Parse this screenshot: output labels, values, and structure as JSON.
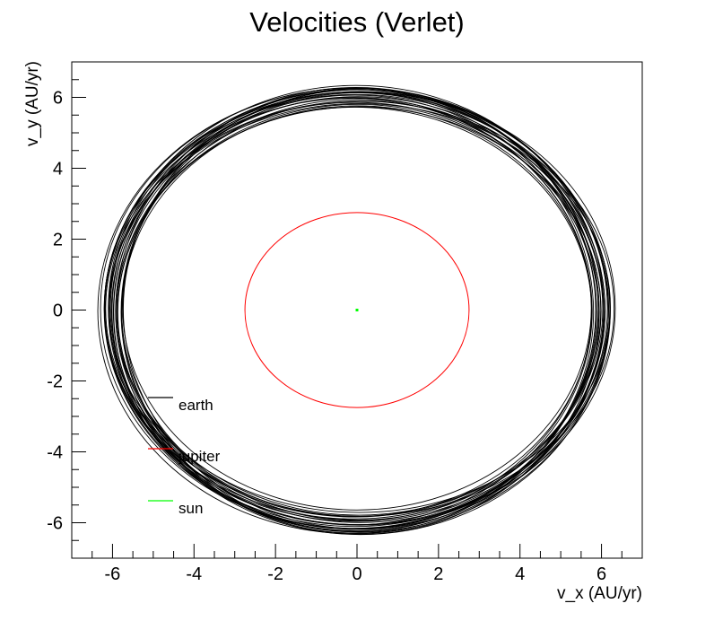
{
  "chart_data": {
    "type": "line",
    "title": "Velocities (Verlet)",
    "xlabel": "v_x (AU/yr)",
    "ylabel": "v_y (AU/yr)",
    "xlim": [
      -7,
      7
    ],
    "ylim": [
      -7,
      7
    ],
    "x_ticks": [
      -6,
      -4,
      -2,
      0,
      2,
      4,
      6
    ],
    "y_ticks": [
      -6,
      -4,
      -2,
      0,
      2,
      4,
      6
    ],
    "grid": false,
    "legend_position": "bottom-left",
    "series": [
      {
        "name": "earth",
        "color": "#000000",
        "shape": "closed orbit, many overlapping loops",
        "rx_min": 5.75,
        "rx_max": 6.3,
        "ry_min": 5.7,
        "ry_max": 6.3,
        "center": [
          0,
          0
        ]
      },
      {
        "name": "jupiter",
        "color": "#ff0000",
        "shape": "closed orbit",
        "rx": 2.75,
        "ry": 2.75,
        "center": [
          0,
          0
        ]
      },
      {
        "name": "sun",
        "color": "#00ff00",
        "shape": "point",
        "x": 0,
        "y": 0
      }
    ]
  }
}
